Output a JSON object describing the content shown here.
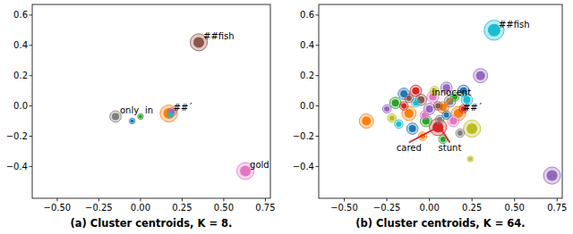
{
  "chart_data": [
    {
      "type": "scatter",
      "title": "(a) Cluster centroids, K = 8.",
      "xlim": [
        -0.65,
        0.78
      ],
      "ylim": [
        -0.61,
        0.67
      ],
      "xticks": [
        {
          "value": -0.5,
          "label": "−0.50"
        },
        {
          "value": -0.25,
          "label": "−0.25"
        },
        {
          "value": 0,
          "label": "0.00"
        },
        0.25,
        {
          "value": 0.5,
          "label": "0.50"
        },
        0.75
      ],
      "yticks": [
        {
          "value": -0.4,
          "label": "−0.4"
        },
        {
          "value": -0.2,
          "label": "−0.2"
        },
        {
          "value": 0,
          "label": "0.0"
        },
        0.2,
        0.4,
        0.6
      ],
      "series": [
        {
          "x": [
            0.35,
            0.17,
            0.63,
            -0.15,
            -0.05,
            0.0,
            0.19,
            0.18
          ],
          "values": [
            0.42,
            -0.05,
            -0.43,
            -0.07,
            -0.1,
            -0.07,
            -0.04,
            -0.06
          ],
          "sizes": [
            6,
            6,
            6,
            4,
            2,
            2,
            3,
            2
          ],
          "colors": [
            "#8c564b",
            "#ff7f0e",
            "#e377c2",
            "#7f7f7f",
            "#1f77b4",
            "#2ca02c",
            "#9467bd",
            "#17becf"
          ]
        }
      ],
      "annotations": [
        {
          "text": "##fish",
          "x": 0.35,
          "y": 0.42
        },
        {
          "text": "##´",
          "x": 0.17,
          "y": -0.05
        },
        {
          "text": "gold",
          "x": 0.63,
          "y": -0.43
        },
        {
          "text": "only",
          "x": -0.15,
          "y": -0.07
        },
        {
          "text": "in",
          "x": 0.0,
          "y": -0.07
        }
      ]
    },
    {
      "type": "scatter",
      "title": "(b) Cluster centroids, K = 64.",
      "xlim": [
        -0.65,
        0.78
      ],
      "ylim": [
        -0.61,
        0.67
      ],
      "xticks": [
        {
          "value": -0.5,
          "label": "−0.50"
        },
        {
          "value": -0.25,
          "label": "−0.25"
        },
        {
          "value": 0,
          "label": "0.00"
        },
        0.25,
        {
          "value": 0.5,
          "label": "0.50"
        },
        0.75
      ],
      "yticks": [
        {
          "value": -0.4,
          "label": "−0.4"
        },
        {
          "value": -0.2,
          "label": "−0.2"
        },
        {
          "value": 0,
          "label": "0.0"
        },
        0.2,
        0.4,
        0.6
      ],
      "series": [
        {
          "x": [
            0.38,
            0.72,
            0.3,
            -0.37,
            0.25,
            0.24,
            0.17,
            0.08,
            0.05,
            -0.15,
            -0.08,
            0.1,
            0.2,
            0.22,
            -0.2,
            -0.12,
            -0.05,
            0.02,
            0.12,
            -0.22,
            -0.18,
            -0.1,
            -0.02,
            0.0,
            0.05,
            0.14,
            0.18,
            0.08,
            -0.04,
            -0.15,
            -0.08,
            0.03,
            0.15,
            0.2,
            -0.25,
            0.1,
            -0.03,
            0.06,
            -0.12
          ],
          "values": [
            0.5,
            -0.46,
            0.2,
            -0.1,
            -0.15,
            -0.35,
            -0.05,
            -0.01,
            -0.14,
            0.08,
            0.1,
            0.12,
            0.1,
            0.04,
            0.02,
            -0.05,
            0.04,
            0.06,
            0.03,
            -0.08,
            -0.12,
            -0.15,
            -0.1,
            -0.02,
            0.0,
            -0.1,
            -0.18,
            -0.22,
            -0.2,
            0.0,
            0.02,
            0.1,
            0.06,
            -0.02,
            -0.02,
            -0.06,
            -0.06,
            -0.09,
            0.05
          ],
          "sizes": [
            7,
            6,
            5,
            5,
            6,
            2,
            5,
            4,
            6,
            4,
            4,
            4,
            4,
            4,
            4,
            5,
            4,
            4,
            4,
            3,
            3,
            4,
            4,
            4,
            3,
            4,
            3,
            3,
            3,
            3,
            3,
            3,
            3,
            3,
            3,
            3,
            3,
            3,
            3
          ],
          "colors": [
            "#17becf",
            "#9467bd",
            "#9467bd",
            "#ff7f0e",
            "#bcbd22",
            "#bcbd22",
            "#ff7f0e",
            "#ff7f0e",
            "#d62728",
            "#1f77b4",
            "#d62728",
            "#9467bd",
            "#1f77b4",
            "#17becf",
            "#2ca02c",
            "#ff7f0e",
            "#8c564b",
            "#e377c2",
            "#7f7f7f",
            "#bcbd22",
            "#17becf",
            "#1f77b4",
            "#2ca02c",
            "#9467bd",
            "#8c564b",
            "#e377c2",
            "#7f7f7f",
            "#2ca02c",
            "#ff7f0e",
            "#d62728",
            "#17becf",
            "#bcbd22",
            "#2ca02c",
            "#d62728",
            "#9467bd",
            "#1f77b4",
            "#e377c2",
            "#7f7f7f",
            "#8c564b"
          ]
        }
      ],
      "annotations": [
        {
          "text": "##fish",
          "x": 0.38,
          "y": 0.5
        },
        {
          "text": "##´",
          "x": 0.17,
          "y": -0.05
        },
        {
          "text": "innocent",
          "x": 0.08,
          "y": -0.01,
          "text_x": 0.13,
          "text_y": 0.07,
          "color": "#ff7f0e"
        },
        {
          "text": "cared",
          "x": 0.05,
          "y": -0.14,
          "text_x": -0.12,
          "text_y": -0.3,
          "color": "#d62728"
        },
        {
          "text": "stunt",
          "x": 0.06,
          "y": -0.14,
          "text_x": 0.12,
          "text_y": -0.3,
          "color": "#d62728"
        }
      ]
    }
  ]
}
